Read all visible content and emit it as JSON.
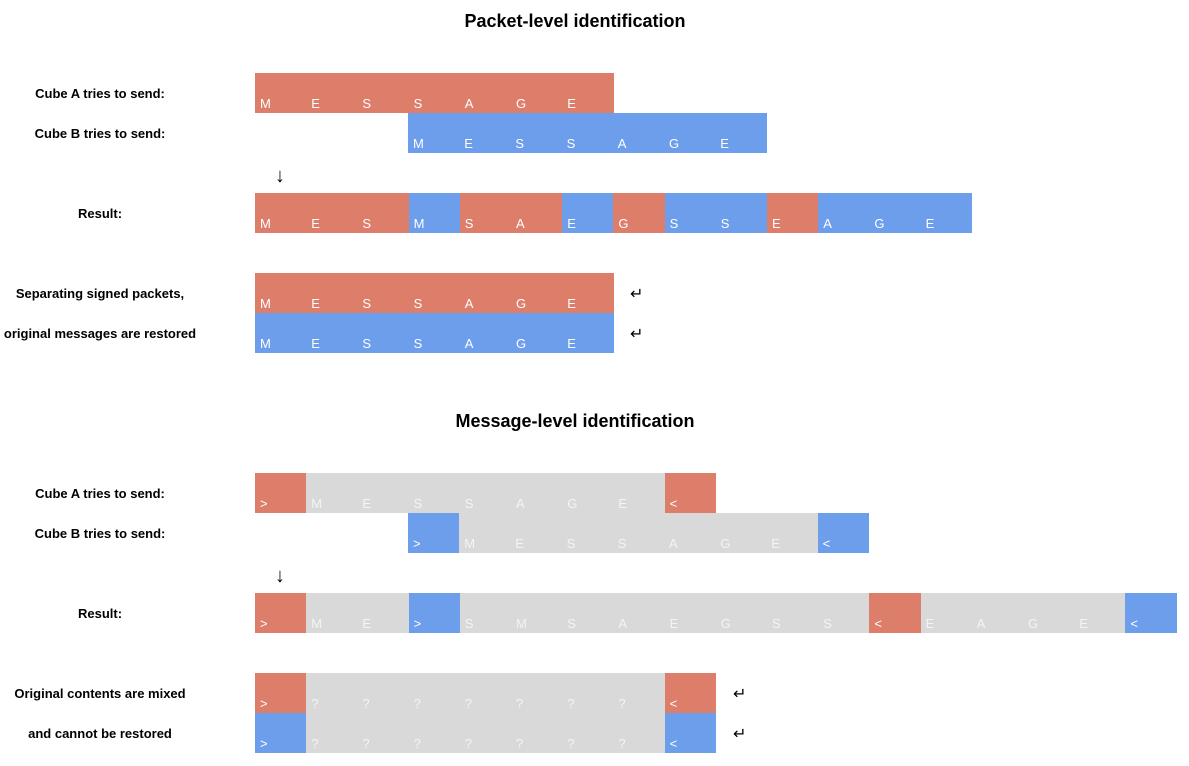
{
  "colors": {
    "red": "#dd7e6b",
    "blue": "#6d9eeb",
    "gray": "#d9d9d9"
  },
  "icons": {
    "down_arrow": "↓",
    "return": "↵"
  },
  "packet": {
    "title": "Packet-level identification",
    "label_a": "Cube A tries to send:",
    "label_b": "Cube B tries to send:",
    "label_result": "Result:",
    "label_sep1": "Separating signed packets,",
    "label_sep2": "original messages are restored",
    "row_a": [
      {
        "t": "M",
        "c": "red"
      },
      {
        "t": "E",
        "c": "red"
      },
      {
        "t": "S",
        "c": "red"
      },
      {
        "t": "S",
        "c": "red"
      },
      {
        "t": "A",
        "c": "red"
      },
      {
        "t": "G",
        "c": "red"
      },
      {
        "t": "E",
        "c": "red"
      }
    ],
    "row_b": [
      {
        "t": "M",
        "c": "blue"
      },
      {
        "t": "E",
        "c": "blue"
      },
      {
        "t": "S",
        "c": "blue"
      },
      {
        "t": "S",
        "c": "blue"
      },
      {
        "t": "A",
        "c": "blue"
      },
      {
        "t": "G",
        "c": "blue"
      },
      {
        "t": "E",
        "c": "blue"
      }
    ],
    "row_result": [
      {
        "t": "M",
        "c": "red"
      },
      {
        "t": "E",
        "c": "red"
      },
      {
        "t": "S",
        "c": "red"
      },
      {
        "t": "M",
        "c": "blue"
      },
      {
        "t": "S",
        "c": "red"
      },
      {
        "t": "A",
        "c": "red"
      },
      {
        "t": "E",
        "c": "blue"
      },
      {
        "t": "G",
        "c": "red"
      },
      {
        "t": "S",
        "c": "blue"
      },
      {
        "t": "S",
        "c": "blue"
      },
      {
        "t": "E",
        "c": "red"
      },
      {
        "t": "A",
        "c": "blue"
      },
      {
        "t": "G",
        "c": "blue"
      },
      {
        "t": "E",
        "c": "blue"
      }
    ],
    "row_restored_a": [
      {
        "t": "M",
        "c": "red"
      },
      {
        "t": "E",
        "c": "red"
      },
      {
        "t": "S",
        "c": "red"
      },
      {
        "t": "S",
        "c": "red"
      },
      {
        "t": "A",
        "c": "red"
      },
      {
        "t": "G",
        "c": "red"
      },
      {
        "t": "E",
        "c": "red"
      }
    ],
    "row_restored_b": [
      {
        "t": "M",
        "c": "blue"
      },
      {
        "t": "E",
        "c": "blue"
      },
      {
        "t": "S",
        "c": "blue"
      },
      {
        "t": "S",
        "c": "blue"
      },
      {
        "t": "A",
        "c": "blue"
      },
      {
        "t": "G",
        "c": "blue"
      },
      {
        "t": "E",
        "c": "blue"
      }
    ]
  },
  "message": {
    "title": "Message-level identification",
    "label_a": "Cube A tries to send:",
    "label_b": "Cube B tries to send:",
    "label_result": "Result:",
    "label_mix1": "Original contents are mixed",
    "label_mix2": "and cannot be restored",
    "row_a": [
      {
        "t": ">",
        "c": "red"
      },
      {
        "t": "M",
        "c": "gray"
      },
      {
        "t": "E",
        "c": "gray"
      },
      {
        "t": "S",
        "c": "gray"
      },
      {
        "t": "S",
        "c": "gray"
      },
      {
        "t": "A",
        "c": "gray"
      },
      {
        "t": "G",
        "c": "gray"
      },
      {
        "t": "E",
        "c": "gray"
      },
      {
        "t": "<",
        "c": "red"
      }
    ],
    "row_b": [
      {
        "t": ">",
        "c": "blue"
      },
      {
        "t": "M",
        "c": "gray"
      },
      {
        "t": "E",
        "c": "gray"
      },
      {
        "t": "S",
        "c": "gray"
      },
      {
        "t": "S",
        "c": "gray"
      },
      {
        "t": "A",
        "c": "gray"
      },
      {
        "t": "G",
        "c": "gray"
      },
      {
        "t": "E",
        "c": "gray"
      },
      {
        "t": "<",
        "c": "blue"
      }
    ],
    "row_result": [
      {
        "t": ">",
        "c": "red"
      },
      {
        "t": "M",
        "c": "gray"
      },
      {
        "t": "E",
        "c": "gray"
      },
      {
        "t": ">",
        "c": "blue"
      },
      {
        "t": "S",
        "c": "gray"
      },
      {
        "t": "M",
        "c": "gray"
      },
      {
        "t": "S",
        "c": "gray"
      },
      {
        "t": "A",
        "c": "gray"
      },
      {
        "t": "E",
        "c": "gray"
      },
      {
        "t": "G",
        "c": "gray"
      },
      {
        "t": "S",
        "c": "gray"
      },
      {
        "t": "S",
        "c": "gray"
      },
      {
        "t": "<",
        "c": "red"
      },
      {
        "t": "E",
        "c": "gray"
      },
      {
        "t": "A",
        "c": "gray"
      },
      {
        "t": "G",
        "c": "gray"
      },
      {
        "t": "E",
        "c": "gray"
      },
      {
        "t": "<",
        "c": "blue"
      }
    ],
    "row_mixed_a": [
      {
        "t": ">",
        "c": "red"
      },
      {
        "t": "?",
        "c": "gray"
      },
      {
        "t": "?",
        "c": "gray"
      },
      {
        "t": "?",
        "c": "gray"
      },
      {
        "t": "?",
        "c": "gray"
      },
      {
        "t": "?",
        "c": "gray"
      },
      {
        "t": "?",
        "c": "gray"
      },
      {
        "t": "?",
        "c": "gray"
      },
      {
        "t": "<",
        "c": "red"
      }
    ],
    "row_mixed_b": [
      {
        "t": ">",
        "c": "blue"
      },
      {
        "t": "?",
        "c": "gray"
      },
      {
        "t": "?",
        "c": "gray"
      },
      {
        "t": "?",
        "c": "gray"
      },
      {
        "t": "?",
        "c": "gray"
      },
      {
        "t": "?",
        "c": "gray"
      },
      {
        "t": "?",
        "c": "gray"
      },
      {
        "t": "?",
        "c": "gray"
      },
      {
        "t": "<",
        "c": "blue"
      }
    ]
  }
}
